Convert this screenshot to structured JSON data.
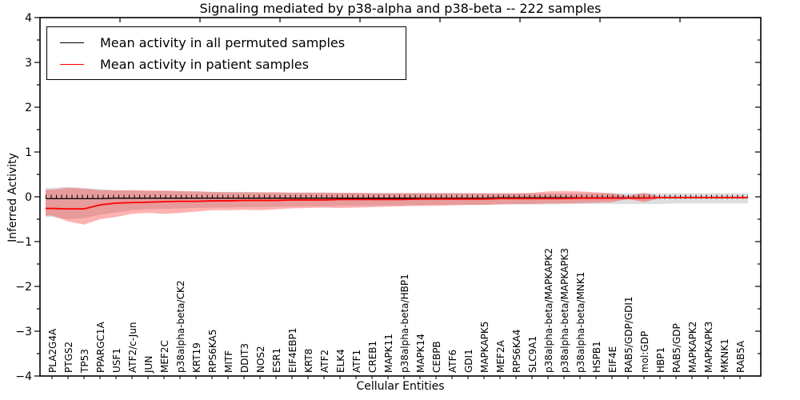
{
  "figure": {
    "title": "Signaling mediated by p38-alpha and p38-beta -- 222 samples",
    "xlabel": "Cellular Entities",
    "ylabel": "Inferred Activity"
  },
  "legend": {
    "items": [
      {
        "label": "Mean activity in all permuted samples",
        "color": "#000000"
      },
      {
        "label": "Mean activity in patient samples",
        "color": "#ff0000"
      }
    ]
  },
  "axes": {
    "y_tick_labels": [
      "4",
      "3",
      "2",
      "1",
      "0",
      "−1",
      "−2",
      "−3",
      "−4"
    ],
    "ylim": [
      -4,
      4
    ],
    "y_major_step": 1,
    "y_minor_step": 0.5,
    "grid": "off",
    "legend_position": "upper-left"
  },
  "chart_data": {
    "type": "line",
    "title": "Signaling mediated by p38-alpha and p38-beta -- 222 samples",
    "xlabel": "Cellular Entities",
    "ylabel": "Inferred Activity",
    "ylim": [
      -4,
      4
    ],
    "categories": [
      "PLA2G4A",
      "PTGS2",
      "TP53",
      "PPARGC1A",
      "USF1",
      "ATF2/c-Jun",
      "JUN",
      "MEF2C",
      "p38alpha-beta/CK2",
      "KRT19",
      "RPS6KA5",
      "MITF",
      "DDIT3",
      "NOS2",
      "ESR1",
      "EIF4EBP1",
      "KRT8",
      "ATF2",
      "ELK4",
      "ATF1",
      "CREB1",
      "MAPK11",
      "p38alpha-beta/HBP1",
      "MAPK14",
      "CEBPB",
      "ATF6",
      "GDI1",
      "MAPKAPK5",
      "MEF2A",
      "RPS6KA4",
      "SLC9A1",
      "p38alpha-beta/MAPKAPK2",
      "p38alpha-beta/MAPKAPK3",
      "p38alpha-beta/MNK1",
      "HSPB1",
      "EIF4E",
      "RAB5/GDP/GDI1",
      "mol:GDP",
      "HBP1",
      "RAB5/GDP",
      "MAPKAPK2",
      "MAPKAPK3",
      "MKNK1",
      "RAB5A"
    ],
    "series": [
      {
        "name": "Mean activity in all permuted samples",
        "color": "#000000",
        "band_color": "#999999",
        "values": [
          -0.04,
          -0.04,
          -0.04,
          -0.04,
          -0.03,
          -0.03,
          -0.03,
          -0.03,
          -0.03,
          -0.03,
          -0.03,
          -0.03,
          -0.03,
          -0.03,
          -0.03,
          -0.03,
          -0.03,
          -0.03,
          -0.03,
          -0.03,
          -0.03,
          -0.03,
          -0.03,
          -0.03,
          -0.03,
          -0.03,
          -0.03,
          -0.03,
          -0.02,
          -0.02,
          -0.02,
          -0.02,
          -0.02,
          -0.02,
          -0.02,
          -0.02,
          -0.02,
          -0.02,
          -0.02,
          -0.02,
          -0.02,
          -0.02,
          -0.02,
          -0.02
        ],
        "band_upper": [
          0.2,
          0.22,
          0.2,
          0.17,
          0.15,
          0.14,
          0.13,
          0.13,
          0.12,
          0.12,
          0.11,
          0.11,
          0.11,
          0.1,
          0.1,
          0.1,
          0.1,
          0.1,
          0.09,
          0.09,
          0.09,
          0.09,
          0.09,
          0.09,
          0.09,
          0.09,
          0.08,
          0.08,
          0.08,
          0.08,
          0.08,
          0.08,
          0.08,
          0.08,
          0.08,
          0.08,
          0.08,
          0.08,
          0.08,
          0.08,
          0.08,
          0.08,
          0.08,
          0.08
        ],
        "band_lower": [
          -0.45,
          -0.5,
          -0.48,
          -0.4,
          -0.35,
          -0.3,
          -0.28,
          -0.27,
          -0.26,
          -0.25,
          -0.24,
          -0.24,
          -0.23,
          -0.23,
          -0.22,
          -0.22,
          -0.21,
          -0.21,
          -0.2,
          -0.2,
          -0.2,
          -0.19,
          -0.19,
          -0.19,
          -0.18,
          -0.18,
          -0.18,
          -0.18,
          -0.17,
          -0.17,
          -0.17,
          -0.17,
          -0.16,
          -0.16,
          -0.16,
          -0.16,
          -0.16,
          -0.16,
          -0.16,
          -0.15,
          -0.15,
          -0.15,
          -0.15,
          -0.15
        ]
      },
      {
        "name": "Mean activity in patient samples",
        "color": "#ff0000",
        "band_color": "#ff0000",
        "values": [
          -0.26,
          -0.27,
          -0.27,
          -0.18,
          -0.14,
          -0.13,
          -0.12,
          -0.11,
          -0.1,
          -0.1,
          -0.09,
          -0.09,
          -0.08,
          -0.08,
          -0.08,
          -0.07,
          -0.07,
          -0.07,
          -0.06,
          -0.06,
          -0.06,
          -0.06,
          -0.06,
          -0.05,
          -0.05,
          -0.05,
          -0.05,
          -0.05,
          -0.04,
          -0.04,
          -0.04,
          -0.04,
          -0.04,
          -0.03,
          -0.03,
          -0.03,
          -0.03,
          -0.03,
          -0.02,
          -0.02,
          -0.02,
          -0.02,
          -0.02,
          -0.02
        ],
        "band_upper": [
          0.16,
          0.2,
          0.18,
          0.15,
          0.14,
          0.15,
          0.14,
          0.14,
          0.13,
          0.12,
          0.11,
          0.1,
          0.1,
          0.1,
          0.1,
          0.09,
          0.09,
          0.09,
          0.09,
          0.09,
          0.08,
          0.08,
          0.08,
          0.08,
          0.08,
          0.08,
          0.08,
          0.08,
          0.08,
          0.08,
          0.09,
          0.12,
          0.13,
          0.12,
          0.1,
          0.08,
          0.02,
          0.09,
          0.01,
          0.01,
          0.01,
          0.01,
          0.01,
          0.01
        ],
        "band_lower": [
          -0.42,
          -0.55,
          -0.62,
          -0.5,
          -0.45,
          -0.38,
          -0.36,
          -0.38,
          -0.36,
          -0.33,
          -0.3,
          -0.3,
          -0.29,
          -0.3,
          -0.28,
          -0.26,
          -0.25,
          -0.24,
          -0.25,
          -0.24,
          -0.23,
          -0.22,
          -0.21,
          -0.2,
          -0.2,
          -0.19,
          -0.18,
          -0.18,
          -0.17,
          -0.16,
          -0.16,
          -0.15,
          -0.15,
          -0.14,
          -0.13,
          -0.12,
          -0.05,
          -0.12,
          -0.03,
          -0.03,
          -0.03,
          -0.03,
          -0.03,
          -0.03
        ]
      }
    ],
    "zero_reference_line": 0
  }
}
